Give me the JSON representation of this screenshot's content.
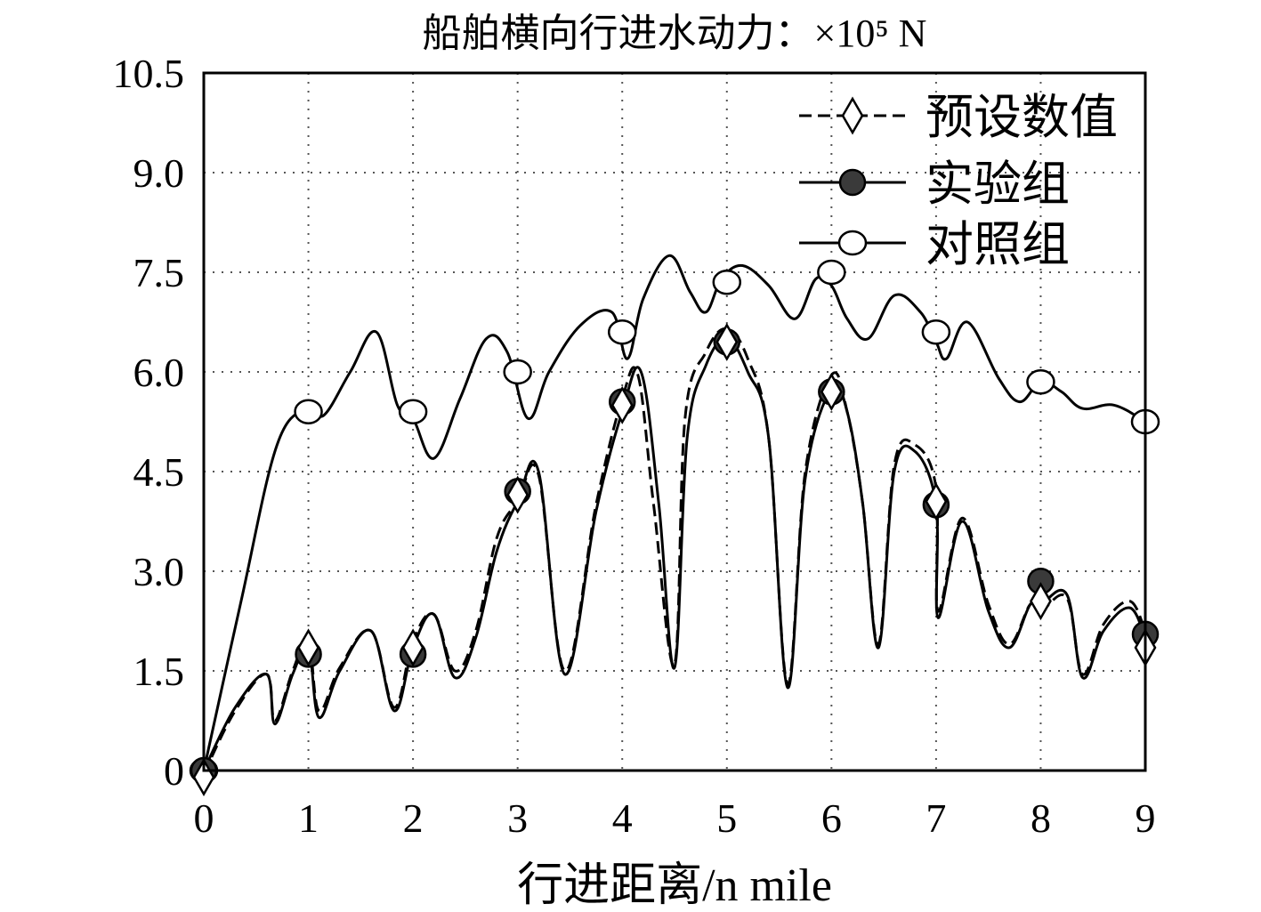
{
  "chart_data": {
    "type": "line",
    "title": "船舶横向行进水动力：×10⁵ N",
    "xlabel": "行进距离/n mile",
    "ylabel": "",
    "xlim": [
      0,
      9
    ],
    "ylim": [
      0,
      10.5
    ],
    "xticks": [
      0,
      1,
      2,
      3,
      4,
      5,
      6,
      7,
      8,
      9
    ],
    "xtick_labels": [
      "0",
      "1",
      "2",
      "3",
      "4",
      "5",
      "6",
      "7",
      "8",
      "9"
    ],
    "yticks": [
      0,
      1.5,
      3.0,
      4.5,
      6.0,
      7.5,
      9.0,
      10.5
    ],
    "ytick_labels": [
      "0",
      "1.5",
      "3.0",
      "4.5",
      "6.0",
      "7.5",
      "9.0",
      "10.5"
    ],
    "grid": true,
    "legend_position": "top-right",
    "series": [
      {
        "name": "预设数值",
        "line_style": "dashed",
        "marker": "diamond-open",
        "color": "#000000",
        "points": [
          [
            0,
            -0.1
          ],
          [
            1,
            1.85
          ],
          [
            2,
            1.85
          ],
          [
            3,
            4.15
          ],
          [
            4,
            5.5
          ],
          [
            5,
            6.45
          ],
          [
            6,
            5.7
          ],
          [
            7,
            4.05
          ],
          [
            8,
            2.55
          ],
          [
            9,
            1.85
          ]
        ],
        "curve": [
          [
            0,
            -0.05
          ],
          [
            0.3,
            0.9
          ],
          [
            0.6,
            1.45
          ],
          [
            0.68,
            0.75
          ],
          [
            0.85,
            1.5
          ],
          [
            1,
            1.95
          ],
          [
            1.1,
            0.9
          ],
          [
            1.3,
            1.55
          ],
          [
            1.6,
            2.1
          ],
          [
            1.82,
            0.95
          ],
          [
            2,
            1.95
          ],
          [
            2.2,
            2.35
          ],
          [
            2.4,
            1.5
          ],
          [
            2.6,
            2.1
          ],
          [
            2.8,
            3.5
          ],
          [
            3,
            4.05
          ],
          [
            3.2,
            4.45
          ],
          [
            3.45,
            1.5
          ],
          [
            3.75,
            4.0
          ],
          [
            4,
            5.6
          ],
          [
            4.15,
            5.95
          ],
          [
            4.3,
            4.0
          ],
          [
            4.5,
            1.6
          ],
          [
            4.6,
            5.3
          ],
          [
            4.8,
            6.3
          ],
          [
            5,
            6.65
          ],
          [
            5.2,
            6.2
          ],
          [
            5.4,
            5.0
          ],
          [
            5.58,
            1.3
          ],
          [
            5.75,
            4.5
          ],
          [
            6,
            5.95
          ],
          [
            6.15,
            5.4
          ],
          [
            6.3,
            4.0
          ],
          [
            6.45,
            1.9
          ],
          [
            6.6,
            4.6
          ],
          [
            6.8,
            4.9
          ],
          [
            7,
            4.25
          ],
          [
            7.02,
            2.4
          ],
          [
            7.25,
            3.8
          ],
          [
            7.5,
            2.5
          ],
          [
            7.7,
            1.9
          ],
          [
            7.9,
            2.5
          ],
          [
            8,
            2.4
          ],
          [
            8.25,
            2.6
          ],
          [
            8.4,
            1.45
          ],
          [
            8.6,
            2.2
          ],
          [
            8.85,
            2.55
          ],
          [
            9,
            2.1
          ]
        ]
      },
      {
        "name": "实验组",
        "line_style": "solid",
        "marker": "circle-filled",
        "color": "#000000",
        "points": [
          [
            0,
            0
          ],
          [
            1,
            1.75
          ],
          [
            2,
            1.75
          ],
          [
            3,
            4.2
          ],
          [
            4,
            5.55
          ],
          [
            5,
            6.45
          ],
          [
            6,
            5.7
          ],
          [
            7,
            4.0
          ],
          [
            8,
            2.85
          ],
          [
            9,
            2.05
          ]
        ],
        "curve": [
          [
            0,
            0
          ],
          [
            0.3,
            0.95
          ],
          [
            0.6,
            1.45
          ],
          [
            0.68,
            0.7
          ],
          [
            0.85,
            1.45
          ],
          [
            1,
            1.85
          ],
          [
            1.1,
            0.8
          ],
          [
            1.3,
            1.5
          ],
          [
            1.6,
            2.1
          ],
          [
            1.82,
            0.9
          ],
          [
            2,
            1.85
          ],
          [
            2.2,
            2.35
          ],
          [
            2.4,
            1.4
          ],
          [
            2.6,
            2.0
          ],
          [
            2.8,
            3.3
          ],
          [
            3,
            4.05
          ],
          [
            3.2,
            4.5
          ],
          [
            3.45,
            1.45
          ],
          [
            3.75,
            3.9
          ],
          [
            4,
            5.4
          ],
          [
            4.18,
            6.0
          ],
          [
            4.35,
            4.0
          ],
          [
            4.5,
            1.55
          ],
          [
            4.62,
            5.0
          ],
          [
            4.8,
            6.1
          ],
          [
            5,
            6.5
          ],
          [
            5.2,
            6.0
          ],
          [
            5.4,
            5.0
          ],
          [
            5.58,
            1.25
          ],
          [
            5.75,
            4.4
          ],
          [
            6,
            5.75
          ],
          [
            6.15,
            5.4
          ],
          [
            6.3,
            4.0
          ],
          [
            6.45,
            1.85
          ],
          [
            6.6,
            4.5
          ],
          [
            6.8,
            4.8
          ],
          [
            7,
            4.0
          ],
          [
            7.02,
            2.3
          ],
          [
            7.25,
            3.75
          ],
          [
            7.5,
            2.4
          ],
          [
            7.7,
            1.85
          ],
          [
            7.9,
            2.5
          ],
          [
            8,
            2.5
          ],
          [
            8.25,
            2.65
          ],
          [
            8.4,
            1.4
          ],
          [
            8.6,
            2.1
          ],
          [
            8.85,
            2.45
          ],
          [
            9,
            2.0
          ]
        ]
      },
      {
        "name": "对照组",
        "line_style": "solid",
        "marker": "circle-open",
        "color": "#000000",
        "points": [
          [
            0,
            0
          ],
          [
            1,
            5.4
          ],
          [
            2,
            5.4
          ],
          [
            3,
            6.0
          ],
          [
            4,
            6.6
          ],
          [
            5,
            7.35
          ],
          [
            6,
            7.5
          ],
          [
            7,
            6.6
          ],
          [
            8,
            5.85
          ],
          [
            9,
            5.25
          ]
        ],
        "curve": [
          [
            0,
            0
          ],
          [
            0.35,
            2.5
          ],
          [
            0.7,
            4.9
          ],
          [
            1,
            5.45
          ],
          [
            1.15,
            5.35
          ],
          [
            1.4,
            6.0
          ],
          [
            1.65,
            6.6
          ],
          [
            1.85,
            5.5
          ],
          [
            2,
            5.3
          ],
          [
            2.2,
            4.7
          ],
          [
            2.45,
            5.6
          ],
          [
            2.7,
            6.5
          ],
          [
            2.9,
            6.3
          ],
          [
            3.1,
            5.3
          ],
          [
            3.3,
            6.0
          ],
          [
            3.6,
            6.7
          ],
          [
            3.9,
            6.9
          ],
          [
            4.05,
            6.2
          ],
          [
            4.2,
            7.1
          ],
          [
            4.45,
            7.75
          ],
          [
            4.65,
            7.2
          ],
          [
            4.8,
            6.9
          ],
          [
            4.95,
            7.4
          ],
          [
            5.15,
            7.6
          ],
          [
            5.4,
            7.3
          ],
          [
            5.65,
            6.8
          ],
          [
            5.85,
            7.4
          ],
          [
            6.0,
            7.3
          ],
          [
            6.15,
            6.8
          ],
          [
            6.35,
            6.5
          ],
          [
            6.6,
            7.15
          ],
          [
            6.85,
            6.9
          ],
          [
            7.0,
            6.45
          ],
          [
            7.1,
            6.2
          ],
          [
            7.3,
            6.75
          ],
          [
            7.6,
            5.9
          ],
          [
            7.8,
            5.55
          ],
          [
            8.0,
            5.85
          ],
          [
            8.2,
            5.7
          ],
          [
            8.4,
            5.45
          ],
          [
            8.7,
            5.5
          ],
          [
            9.0,
            5.25
          ]
        ]
      }
    ]
  }
}
